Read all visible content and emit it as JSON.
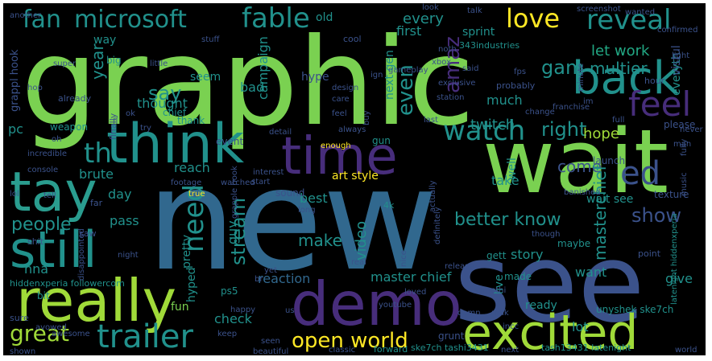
{
  "palette": {
    "background": "#000000",
    "frame": "#ffffff",
    "green": "#7ad151",
    "lime": "#a0da39",
    "yellow": "#fde725",
    "teal": "#21918c",
    "cyan": "#2a9d8f",
    "blue": "#31688e",
    "indigo": "#3b528b",
    "purple": "#440154",
    "violet": "#472d7b",
    "sea": "#22a884"
  },
  "words": [
    {
      "text": "graphic"
    },
    {
      "text": "new"
    },
    {
      "text": "see"
    },
    {
      "text": "wait"
    },
    {
      "text": "really"
    },
    {
      "text": "think"
    },
    {
      "text": "demo"
    },
    {
      "text": "excited"
    },
    {
      "text": "tay"
    },
    {
      "text": "time"
    },
    {
      "text": "back"
    },
    {
      "text": "still"
    },
    {
      "text": "fan"
    },
    {
      "text": "microsoft"
    },
    {
      "text": "fable"
    },
    {
      "text": "love"
    },
    {
      "text": "reveal"
    },
    {
      "text": "feel"
    },
    {
      "text": "watch"
    },
    {
      "text": "trailer"
    },
    {
      "text": "great"
    },
    {
      "text": "open world"
    },
    {
      "text": "ed"
    },
    {
      "text": "th"
    },
    {
      "text": "amaz"
    },
    {
      "text": "need"
    },
    {
      "text": "stream"
    },
    {
      "text": "people"
    },
    {
      "text": "better know"
    },
    {
      "text": "show"
    },
    {
      "text": "say"
    },
    {
      "text": "right"
    },
    {
      "text": "gam"
    },
    {
      "text": "let work"
    },
    {
      "text": "come"
    },
    {
      "text": "multier"
    },
    {
      "text": "every"
    },
    {
      "text": "even"
    },
    {
      "text": "make"
    },
    {
      "text": "video"
    },
    {
      "text": "year"
    },
    {
      "text": "twitch"
    },
    {
      "text": "hope"
    },
    {
      "text": "master chief"
    },
    {
      "text": "masterchief"
    },
    {
      "text": "reaction"
    },
    {
      "text": "story"
    },
    {
      "text": "lot"
    },
    {
      "text": "fun"
    },
    {
      "text": "check"
    },
    {
      "text": "pretty"
    },
    {
      "text": "guy"
    },
    {
      "text": "art style"
    },
    {
      "text": "brute"
    },
    {
      "text": "pass"
    },
    {
      "text": "day"
    },
    {
      "text": "best"
    },
    {
      "text": "reach"
    },
    {
      "text": "campaign"
    },
    {
      "text": "thought"
    },
    {
      "text": "much"
    },
    {
      "text": "first"
    },
    {
      "text": "sprint"
    },
    {
      "text": "next gen"
    },
    {
      "text": "hype"
    },
    {
      "text": "bad"
    },
    {
      "text": "seem"
    },
    {
      "text": "way"
    },
    {
      "text": "old"
    },
    {
      "text": "pc"
    },
    {
      "text": "grappl hook"
    },
    {
      "text": "nna"
    },
    {
      "text": "hyped"
    },
    {
      "text": "want"
    },
    {
      "text": "ready"
    },
    {
      "text": "give"
    },
    {
      "text": "live"
    },
    {
      "text": "take"
    },
    {
      "text": "well"
    },
    {
      "text": "everyth"
    },
    {
      "text": "please"
    },
    {
      "text": "vistul"
    },
    {
      "text": "wait see"
    },
    {
      "text": "made"
    },
    {
      "text": "gett"
    },
    {
      "text": "maybe"
    },
    {
      "text": "point"
    },
    {
      "text": "unyshek ske7ch"
    },
    {
      "text": "hiddenxperia followercom"
    },
    {
      "text": "latenight hiddenxperia"
    },
    {
      "text": "tash13431 latenight"
    },
    {
      "text": "ske7ch tashi3431"
    },
    {
      "text": "forward"
    },
    {
      "text": "classic"
    },
    {
      "text": "beautiful"
    },
    {
      "text": "awesome"
    },
    {
      "text": "shown"
    },
    {
      "text": "grunt"
    },
    {
      "text": "next"
    },
    {
      "text": "world"
    },
    {
      "text": "sound"
    },
    {
      "text": "event"
    },
    {
      "text": "ps5"
    },
    {
      "text": "banished"
    },
    {
      "text": "launch"
    },
    {
      "text": "texture"
    },
    {
      "text": "343industries"
    },
    {
      "text": "talk"
    },
    {
      "text": "wanted"
    },
    {
      "text": "fps"
    },
    {
      "text": "probably"
    },
    {
      "text": "franchise"
    },
    {
      "text": "chief"
    },
    {
      "text": "already"
    },
    {
      "text": "weapon"
    },
    {
      "text": "thank"
    },
    {
      "text": "finally"
    },
    {
      "text": "incredible"
    },
    {
      "text": "console"
    },
    {
      "text": "tell"
    },
    {
      "text": "far"
    },
    {
      "text": "shit"
    },
    {
      "text": "saw"
    },
    {
      "text": "disappointed"
    },
    {
      "text": "bit"
    },
    {
      "text": "sure"
    },
    {
      "text": "lol"
    },
    {
      "text": "avowed"
    },
    {
      "text": "gun"
    },
    {
      "text": "4k"
    },
    {
      "text": "nice"
    },
    {
      "text": "hour"
    },
    {
      "text": "music"
    },
    {
      "text": "big"
    },
    {
      "text": "cool"
    },
    {
      "text": "little"
    },
    {
      "text": "super"
    },
    {
      "text": "always"
    },
    {
      "text": "enough"
    },
    {
      "text": "detail"
    },
    {
      "text": "design"
    },
    {
      "text": "true"
    },
    {
      "text": "start"
    },
    {
      "text": "interest"
    },
    {
      "text": "yet"
    },
    {
      "text": "real"
    },
    {
      "text": "loved"
    },
    {
      "text": "youtube"
    },
    {
      "text": "release"
    },
    {
      "text": "damn"
    },
    {
      "text": "mak"
    },
    {
      "text": "man"
    },
    {
      "text": "full"
    },
    {
      "text": "never"
    },
    {
      "text": "actually"
    },
    {
      "text": "definitely"
    },
    {
      "text": "though"
    },
    {
      "text": "night"
    },
    {
      "text": "somethi"
    },
    {
      "text": "incc"
    },
    {
      "text": "keep"
    },
    {
      "text": "seen"
    },
    {
      "text": "happy"
    },
    {
      "text": "us"
    },
    {
      "text": "br"
    },
    {
      "text": "said"
    },
    {
      "text": "confirmed"
    },
    {
      "text": "last"
    },
    {
      "text": "im"
    },
    {
      "text": "light"
    },
    {
      "text": "fully"
    },
    {
      "text": "minute"
    },
    {
      "text": "change"
    },
    {
      "text": "exclusive"
    },
    {
      "text": "station"
    },
    {
      "text": "buy"
    },
    {
      "text": "feel"
    },
    {
      "text": "another"
    },
    {
      "text": "noth"
    },
    {
      "text": "ok"
    },
    {
      "text": "oh"
    },
    {
      "text": "fl"
    },
    {
      "text": "hop"
    },
    {
      "text": "care"
    },
    {
      "text": "try"
    },
    {
      "text": "long"
    },
    {
      "text": "footage"
    },
    {
      "text": "watched"
    },
    {
      "text": "stuff"
    },
    {
      "text": "grapple hook"
    },
    {
      "text": "screenshot"
    },
    {
      "text": "xbox"
    },
    {
      "text": "gameplay"
    },
    {
      "text": "ign"
    },
    {
      "text": "look"
    }
  ]
}
